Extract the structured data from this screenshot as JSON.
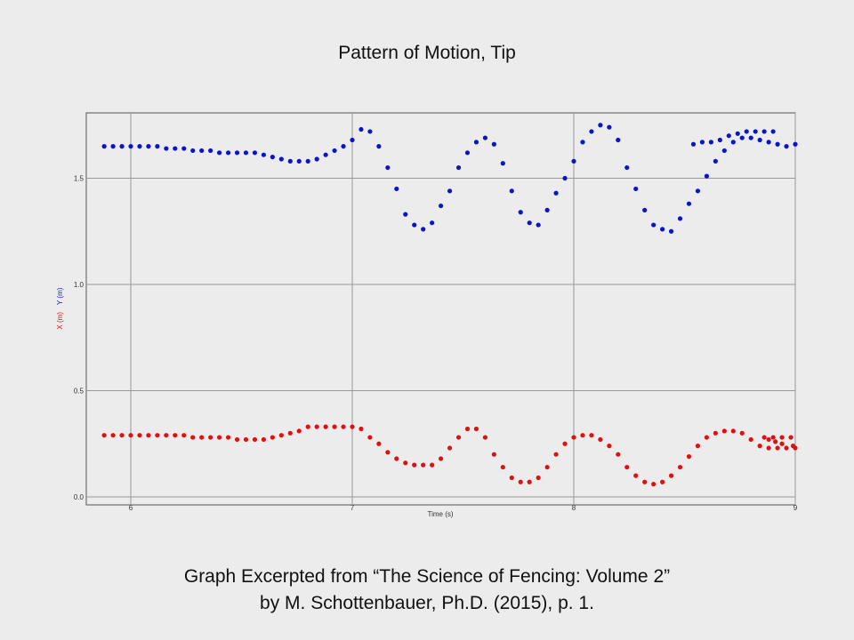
{
  "title": "Pattern of Motion, Tip",
  "caption": {
    "line1": "Graph Excerpted from “The Science of Fencing: Volume 2”",
    "line2": "by M. Schottenbauer, Ph.D. (2015), p. 1."
  },
  "chart_data": {
    "type": "scatter",
    "title": "Pattern of Motion, Tip",
    "xlabel": "Time (s)",
    "ylabel_x": "X (m)",
    "ylabel_y": "Y (m)",
    "xlim": [
      5.8,
      9.0
    ],
    "ylim": [
      0.0,
      1.8
    ],
    "x_ticks": [
      "6",
      "7",
      "8",
      "9"
    ],
    "y_ticks": [
      "0.0",
      "0.5",
      "1.0",
      "1.5"
    ],
    "grid": true,
    "colors": {
      "X": "#dd1111",
      "Y": "#0a14c8",
      "grid": "#999999",
      "plot_bg": "#ececec"
    },
    "series": [
      {
        "name": "Y (m)",
        "color": "#0a14c8",
        "points": [
          [
            5.88,
            1.65
          ],
          [
            5.92,
            1.65
          ],
          [
            5.96,
            1.65
          ],
          [
            6.0,
            1.65
          ],
          [
            6.04,
            1.65
          ],
          [
            6.08,
            1.65
          ],
          [
            6.12,
            1.65
          ],
          [
            6.16,
            1.64
          ],
          [
            6.2,
            1.64
          ],
          [
            6.24,
            1.64
          ],
          [
            6.28,
            1.63
          ],
          [
            6.32,
            1.63
          ],
          [
            6.36,
            1.63
          ],
          [
            6.4,
            1.62
          ],
          [
            6.44,
            1.62
          ],
          [
            6.48,
            1.62
          ],
          [
            6.52,
            1.62
          ],
          [
            6.56,
            1.62
          ],
          [
            6.6,
            1.61
          ],
          [
            6.64,
            1.6
          ],
          [
            6.68,
            1.59
          ],
          [
            6.72,
            1.58
          ],
          [
            6.76,
            1.58
          ],
          [
            6.8,
            1.58
          ],
          [
            6.84,
            1.59
          ],
          [
            6.88,
            1.61
          ],
          [
            6.92,
            1.63
          ],
          [
            6.96,
            1.65
          ],
          [
            7.0,
            1.68
          ],
          [
            7.04,
            1.73
          ],
          [
            7.08,
            1.72
          ],
          [
            7.12,
            1.65
          ],
          [
            7.16,
            1.55
          ],
          [
            7.2,
            1.45
          ],
          [
            7.24,
            1.33
          ],
          [
            7.28,
            1.28
          ],
          [
            7.32,
            1.26
          ],
          [
            7.36,
            1.29
          ],
          [
            7.4,
            1.37
          ],
          [
            7.44,
            1.44
          ],
          [
            7.48,
            1.55
          ],
          [
            7.52,
            1.62
          ],
          [
            7.56,
            1.67
          ],
          [
            7.6,
            1.69
          ],
          [
            7.64,
            1.66
          ],
          [
            7.68,
            1.57
          ],
          [
            7.72,
            1.44
          ],
          [
            7.76,
            1.34
          ],
          [
            7.8,
            1.29
          ],
          [
            7.84,
            1.28
          ],
          [
            7.88,
            1.35
          ],
          [
            7.92,
            1.43
          ],
          [
            7.96,
            1.5
          ],
          [
            8.0,
            1.58
          ],
          [
            8.04,
            1.67
          ],
          [
            8.08,
            1.72
          ],
          [
            8.12,
            1.75
          ],
          [
            8.16,
            1.74
          ],
          [
            8.2,
            1.68
          ],
          [
            8.24,
            1.55
          ],
          [
            8.28,
            1.45
          ],
          [
            8.32,
            1.35
          ],
          [
            8.36,
            1.28
          ],
          [
            8.4,
            1.26
          ],
          [
            8.44,
            1.25
          ],
          [
            8.48,
            1.31
          ],
          [
            8.52,
            1.38
          ],
          [
            8.56,
            1.44
          ],
          [
            8.6,
            1.51
          ],
          [
            8.64,
            1.58
          ],
          [
            8.68,
            1.63
          ],
          [
            8.72,
            1.67
          ],
          [
            8.76,
            1.69
          ],
          [
            8.8,
            1.69
          ],
          [
            8.84,
            1.68
          ],
          [
            8.88,
            1.67
          ],
          [
            8.92,
            1.66
          ],
          [
            8.96,
            1.65
          ],
          [
            9.0,
            1.66
          ],
          [
            8.54,
            1.66
          ],
          [
            8.58,
            1.67
          ],
          [
            8.62,
            1.67
          ],
          [
            8.66,
            1.68
          ],
          [
            8.7,
            1.7
          ],
          [
            8.74,
            1.71
          ],
          [
            8.78,
            1.72
          ],
          [
            8.82,
            1.72
          ],
          [
            8.86,
            1.72
          ],
          [
            8.9,
            1.72
          ]
        ]
      },
      {
        "name": "X (m)",
        "color": "#dd1111",
        "points": [
          [
            5.88,
            0.29
          ],
          [
            5.92,
            0.29
          ],
          [
            5.96,
            0.29
          ],
          [
            6.0,
            0.29
          ],
          [
            6.04,
            0.29
          ],
          [
            6.08,
            0.29
          ],
          [
            6.12,
            0.29
          ],
          [
            6.16,
            0.29
          ],
          [
            6.2,
            0.29
          ],
          [
            6.24,
            0.29
          ],
          [
            6.28,
            0.28
          ],
          [
            6.32,
            0.28
          ],
          [
            6.36,
            0.28
          ],
          [
            6.4,
            0.28
          ],
          [
            6.44,
            0.28
          ],
          [
            6.48,
            0.27
          ],
          [
            6.52,
            0.27
          ],
          [
            6.56,
            0.27
          ],
          [
            6.6,
            0.27
          ],
          [
            6.64,
            0.28
          ],
          [
            6.68,
            0.29
          ],
          [
            6.72,
            0.3
          ],
          [
            6.76,
            0.31
          ],
          [
            6.8,
            0.33
          ],
          [
            6.84,
            0.33
          ],
          [
            6.88,
            0.33
          ],
          [
            6.92,
            0.33
          ],
          [
            6.96,
            0.33
          ],
          [
            7.0,
            0.33
          ],
          [
            7.04,
            0.32
          ],
          [
            7.08,
            0.28
          ],
          [
            7.12,
            0.25
          ],
          [
            7.16,
            0.21
          ],
          [
            7.2,
            0.18
          ],
          [
            7.24,
            0.16
          ],
          [
            7.28,
            0.15
          ],
          [
            7.32,
            0.15
          ],
          [
            7.36,
            0.15
          ],
          [
            7.4,
            0.18
          ],
          [
            7.44,
            0.23
          ],
          [
            7.48,
            0.28
          ],
          [
            7.52,
            0.32
          ],
          [
            7.56,
            0.32
          ],
          [
            7.6,
            0.28
          ],
          [
            7.64,
            0.2
          ],
          [
            7.68,
            0.14
          ],
          [
            7.72,
            0.09
          ],
          [
            7.76,
            0.07
          ],
          [
            7.8,
            0.07
          ],
          [
            7.84,
            0.09
          ],
          [
            7.88,
            0.14
          ],
          [
            7.92,
            0.2
          ],
          [
            7.96,
            0.25
          ],
          [
            8.0,
            0.28
          ],
          [
            8.04,
            0.29
          ],
          [
            8.08,
            0.29
          ],
          [
            8.12,
            0.27
          ],
          [
            8.16,
            0.24
          ],
          [
            8.2,
            0.2
          ],
          [
            8.24,
            0.14
          ],
          [
            8.28,
            0.1
          ],
          [
            8.32,
            0.07
          ],
          [
            8.36,
            0.06
          ],
          [
            8.4,
            0.07
          ],
          [
            8.44,
            0.1
          ],
          [
            8.48,
            0.14
          ],
          [
            8.52,
            0.19
          ],
          [
            8.56,
            0.24
          ],
          [
            8.6,
            0.28
          ],
          [
            8.64,
            0.3
          ],
          [
            8.68,
            0.31
          ],
          [
            8.72,
            0.31
          ],
          [
            8.76,
            0.3
          ],
          [
            8.8,
            0.27
          ],
          [
            8.84,
            0.24
          ],
          [
            8.88,
            0.23
          ],
          [
            8.92,
            0.23
          ],
          [
            8.96,
            0.23
          ],
          [
            9.0,
            0.23
          ],
          [
            8.99,
            0.24
          ],
          [
            8.94,
            0.25
          ],
          [
            8.91,
            0.26
          ],
          [
            8.88,
            0.27
          ],
          [
            8.86,
            0.28
          ],
          [
            8.9,
            0.28
          ],
          [
            8.94,
            0.28
          ],
          [
            8.98,
            0.28
          ]
        ]
      }
    ]
  }
}
